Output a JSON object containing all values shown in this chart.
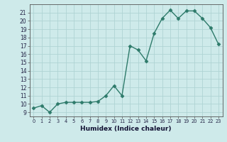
{
  "x": [
    0,
    1,
    2,
    3,
    4,
    5,
    6,
    7,
    8,
    9,
    10,
    11,
    12,
    13,
    14,
    15,
    16,
    17,
    18,
    19,
    20,
    21,
    22,
    23
  ],
  "y": [
    9.5,
    9.8,
    9.0,
    10.0,
    10.2,
    10.2,
    10.2,
    10.2,
    10.3,
    11.0,
    12.2,
    11.0,
    17.0,
    16.5,
    15.2,
    18.5,
    20.3,
    21.3,
    20.3,
    21.2,
    21.2,
    20.3,
    19.2,
    17.2
  ],
  "xlim": [
    -0.5,
    23.5
  ],
  "ylim": [
    8.5,
    22
  ],
  "yticks": [
    9,
    10,
    11,
    12,
    13,
    14,
    15,
    16,
    17,
    18,
    19,
    20,
    21
  ],
  "xticks": [
    0,
    1,
    2,
    3,
    4,
    5,
    6,
    7,
    8,
    9,
    10,
    11,
    12,
    13,
    14,
    15,
    16,
    17,
    18,
    19,
    20,
    21,
    22,
    23
  ],
  "xlabel": "Humidex (Indice chaleur)",
  "line_color": "#2d7a6a",
  "marker": "D",
  "marker_size": 2.5,
  "line_width": 1.0,
  "bg_color": "#ceeaea",
  "grid_color": "#afd4d4",
  "axis_color": "#555555"
}
